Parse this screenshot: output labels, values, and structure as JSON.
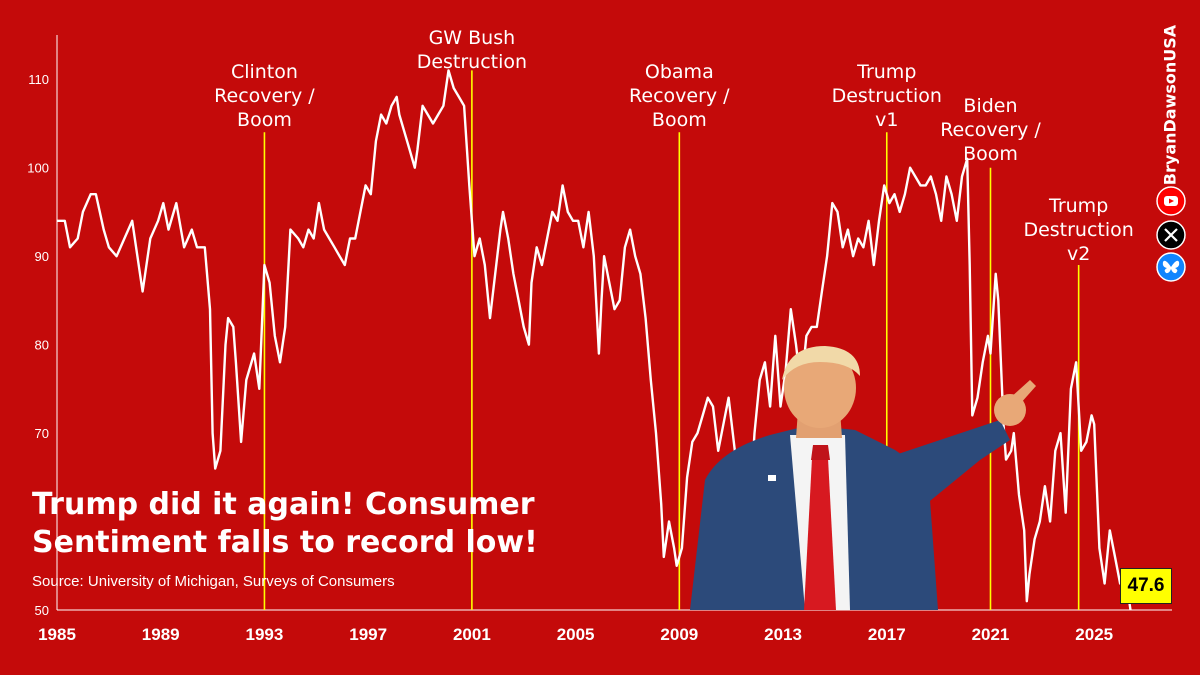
{
  "chart_data": {
    "type": "line",
    "title": "Trump did it again! Consumer Sentiment falls to record low!",
    "title_lines": [
      "Trump did it again! Consumer",
      "Sentiment falls to record low!"
    ],
    "source": "Source: University of Michigan, Surveys of Consumers",
    "xlabel": "",
    "ylabel": "",
    "xlim": [
      1985,
      2028
    ],
    "ylim": [
      50,
      115
    ],
    "x_ticks": [
      1985,
      1989,
      1993,
      1997,
      2001,
      2005,
      2009,
      2013,
      2017,
      2021,
      2025
    ],
    "y_ticks": [
      50,
      70,
      80,
      90,
      100,
      110
    ],
    "grid": false,
    "legend": "none",
    "line_color": "#ffffff",
    "marker_color": "#ffff00",
    "last_value_label": "47.6",
    "series": [
      {
        "points": [
          [
            1985.0,
            94
          ],
          [
            1985.3,
            94
          ],
          [
            1985.5,
            91
          ],
          [
            1985.8,
            92
          ],
          [
            1986.0,
            95
          ],
          [
            1986.3,
            97
          ],
          [
            1986.5,
            97
          ],
          [
            1986.8,
            93
          ],
          [
            1987.0,
            91
          ],
          [
            1987.3,
            90
          ],
          [
            1987.6,
            92
          ],
          [
            1987.9,
            94
          ],
          [
            1988.1,
            90
          ],
          [
            1988.3,
            86
          ],
          [
            1988.6,
            92
          ],
          [
            1988.9,
            94
          ],
          [
            1989.1,
            96
          ],
          [
            1989.3,
            93
          ],
          [
            1989.6,
            96
          ],
          [
            1989.9,
            91
          ],
          [
            1990.2,
            93
          ],
          [
            1990.4,
            91
          ],
          [
            1990.7,
            91
          ],
          [
            1990.9,
            84
          ],
          [
            1991.0,
            70
          ],
          [
            1991.1,
            66
          ],
          [
            1991.3,
            68
          ],
          [
            1991.5,
            80
          ],
          [
            1991.6,
            83
          ],
          [
            1991.8,
            82
          ],
          [
            1991.9,
            78
          ],
          [
            1992.1,
            69
          ],
          [
            1992.3,
            76
          ],
          [
            1992.6,
            79
          ],
          [
            1992.8,
            75
          ],
          [
            1993.0,
            89
          ],
          [
            1993.2,
            87
          ],
          [
            1993.4,
            81
          ],
          [
            1993.6,
            78
          ],
          [
            1993.8,
            82
          ],
          [
            1994.0,
            93
          ],
          [
            1994.3,
            92
          ],
          [
            1994.5,
            91
          ],
          [
            1994.7,
            93
          ],
          [
            1994.9,
            92
          ],
          [
            1995.1,
            96
          ],
          [
            1995.3,
            93
          ],
          [
            1995.5,
            92
          ],
          [
            1995.7,
            91
          ],
          [
            1995.9,
            90
          ],
          [
            1996.1,
            89
          ],
          [
            1996.3,
            92
          ],
          [
            1996.5,
            92
          ],
          [
            1996.7,
            95
          ],
          [
            1996.9,
            98
          ],
          [
            1997.1,
            97
          ],
          [
            1997.3,
            103
          ],
          [
            1997.5,
            106
          ],
          [
            1997.7,
            105
          ],
          [
            1997.9,
            107
          ],
          [
            1998.1,
            108
          ],
          [
            1998.2,
            106
          ],
          [
            1998.4,
            104
          ],
          [
            1998.6,
            102
          ],
          [
            1998.8,
            100
          ],
          [
            1998.9,
            102
          ],
          [
            1999.1,
            107
          ],
          [
            1999.3,
            106
          ],
          [
            1999.5,
            105
          ],
          [
            1999.7,
            106
          ],
          [
            1999.9,
            107
          ],
          [
            2000.1,
            111
          ],
          [
            2000.3,
            109
          ],
          [
            2000.5,
            108
          ],
          [
            2000.7,
            107
          ],
          [
            2000.9,
            98
          ],
          [
            2001.0,
            94
          ],
          [
            2001.1,
            90
          ],
          [
            2001.3,
            92
          ],
          [
            2001.5,
            89
          ],
          [
            2001.7,
            83
          ],
          [
            2001.9,
            88
          ],
          [
            2002.1,
            93
          ],
          [
            2002.2,
            95
          ],
          [
            2002.4,
            92
          ],
          [
            2002.6,
            88
          ],
          [
            2002.8,
            85
          ],
          [
            2003.0,
            82
          ],
          [
            2003.2,
            80
          ],
          [
            2003.3,
            87
          ],
          [
            2003.5,
            91
          ],
          [
            2003.7,
            89
          ],
          [
            2003.9,
            92
          ],
          [
            2004.1,
            95
          ],
          [
            2004.3,
            94
          ],
          [
            2004.5,
            98
          ],
          [
            2004.7,
            95
          ],
          [
            2004.9,
            94
          ],
          [
            2005.1,
            94
          ],
          [
            2005.3,
            91
          ],
          [
            2005.5,
            95
          ],
          [
            2005.7,
            90
          ],
          [
            2005.9,
            79
          ],
          [
            2006.0,
            85
          ],
          [
            2006.1,
            90
          ],
          [
            2006.3,
            87
          ],
          [
            2006.5,
            84
          ],
          [
            2006.7,
            85
          ],
          [
            2006.9,
            91
          ],
          [
            2007.1,
            93
          ],
          [
            2007.3,
            90
          ],
          [
            2007.5,
            88
          ],
          [
            2007.7,
            83
          ],
          [
            2007.9,
            76
          ],
          [
            2008.1,
            70
          ],
          [
            2008.3,
            62
          ],
          [
            2008.4,
            56
          ],
          [
            2008.6,
            60
          ],
          [
            2008.8,
            57
          ],
          [
            2008.9,
            55
          ],
          [
            2009.1,
            57
          ],
          [
            2009.3,
            65
          ],
          [
            2009.5,
            69
          ],
          [
            2009.7,
            70
          ],
          [
            2009.9,
            72
          ],
          [
            2010.1,
            74
          ],
          [
            2010.3,
            73
          ],
          [
            2010.5,
            68
          ],
          [
            2010.7,
            71
          ],
          [
            2010.9,
            74
          ],
          [
            2011.1,
            69
          ],
          [
            2011.3,
            64
          ],
          [
            2011.5,
            67
          ],
          [
            2011.7,
            60
          ],
          [
            2011.9,
            70
          ],
          [
            2012.1,
            76
          ],
          [
            2012.3,
            78
          ],
          [
            2012.5,
            73
          ],
          [
            2012.7,
            81
          ],
          [
            2012.9,
            73
          ],
          [
            2013.1,
            77
          ],
          [
            2013.3,
            84
          ],
          [
            2013.5,
            80
          ],
          [
            2013.7,
            75
          ],
          [
            2013.9,
            81
          ],
          [
            2014.1,
            82
          ],
          [
            2014.3,
            82
          ],
          [
            2014.5,
            86
          ],
          [
            2014.7,
            90
          ],
          [
            2014.9,
            96
          ],
          [
            2015.1,
            95
          ],
          [
            2015.3,
            91
          ],
          [
            2015.5,
            93
          ],
          [
            2015.7,
            90
          ],
          [
            2015.9,
            92
          ],
          [
            2016.1,
            91
          ],
          [
            2016.3,
            94
          ],
          [
            2016.5,
            89
          ],
          [
            2016.7,
            94
          ],
          [
            2016.9,
            98
          ],
          [
            2017.1,
            96
          ],
          [
            2017.3,
            97
          ],
          [
            2017.5,
            95
          ],
          [
            2017.7,
            97
          ],
          [
            2017.9,
            100
          ],
          [
            2018.1,
            99
          ],
          [
            2018.3,
            98
          ],
          [
            2018.5,
            98
          ],
          [
            2018.7,
            99
          ],
          [
            2018.9,
            97
          ],
          [
            2019.1,
            94
          ],
          [
            2019.3,
            99
          ],
          [
            2019.5,
            97
          ],
          [
            2019.7,
            94
          ],
          [
            2019.9,
            99
          ],
          [
            2020.1,
            101
          ],
          [
            2020.2,
            89
          ],
          [
            2020.3,
            72
          ],
          [
            2020.5,
            74
          ],
          [
            2020.7,
            78
          ],
          [
            2020.9,
            81
          ],
          [
            2021.0,
            79
          ],
          [
            2021.2,
            88
          ],
          [
            2021.3,
            85
          ],
          [
            2021.5,
            71
          ],
          [
            2021.6,
            67
          ],
          [
            2021.8,
            68
          ],
          [
            2021.9,
            70
          ],
          [
            2022.1,
            63
          ],
          [
            2022.3,
            59
          ],
          [
            2022.4,
            51
          ],
          [
            2022.5,
            54
          ],
          [
            2022.7,
            58
          ],
          [
            2022.9,
            60
          ],
          [
            2023.1,
            64
          ],
          [
            2023.3,
            60
          ],
          [
            2023.5,
            68
          ],
          [
            2023.7,
            70
          ],
          [
            2023.9,
            61
          ],
          [
            2024.1,
            75
          ],
          [
            2024.3,
            78
          ],
          [
            2024.5,
            68
          ],
          [
            2024.7,
            69
          ],
          [
            2024.9,
            72
          ],
          [
            2025.0,
            71
          ],
          [
            2025.2,
            57
          ],
          [
            2025.4,
            53
          ],
          [
            2025.6,
            59
          ],
          [
            2025.8,
            56
          ],
          [
            2026.0,
            53
          ],
          [
            2026.2,
            54
          ],
          [
            2026.4,
            47.6
          ]
        ]
      }
    ],
    "eras": [
      {
        "label": [
          "Clinton",
          "Recovery /",
          "Boom"
        ],
        "x": 1993.0,
        "marker_top": 104
      },
      {
        "label": [
          "GW Bush",
          "Destruction"
        ],
        "x": 2001.0,
        "marker_top": 111
      },
      {
        "label": [
          "Obama",
          "Recovery /",
          "Boom"
        ],
        "x": 2009.0,
        "marker_top": 104
      },
      {
        "label": [
          "Trump",
          "Destruction",
          "v1"
        ],
        "x": 2017.0,
        "marker_top": 104
      },
      {
        "label": [
          "Biden",
          "Recovery /",
          "Boom"
        ],
        "x": 2021.0,
        "marker_top": 100
      },
      {
        "label": [
          "Trump",
          "Destruction",
          "v2"
        ],
        "x": 2024.4,
        "marker_top": 89
      }
    ]
  },
  "branding": {
    "handle": "BryanDawsonUSA",
    "social_icons": [
      "youtube-icon",
      "x-icon",
      "bluesky-icon"
    ],
    "colors": {
      "youtube": "#ff0000",
      "x": "#000000",
      "bluesky": "#1185fe"
    }
  },
  "colors": {
    "background": "#c40a0a",
    "line": "#ffffff",
    "marker": "#ffff00",
    "badge": "#ffff00"
  },
  "photo": {
    "subject": "Donald Trump pointing",
    "icon": "person-photo"
  }
}
